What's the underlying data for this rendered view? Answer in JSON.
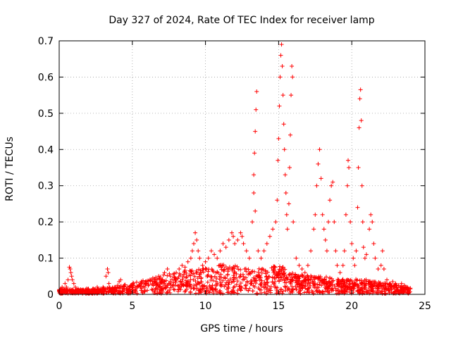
{
  "chart_data": {
    "type": "scatter",
    "title": "Day 327 of 2024, Rate Of TEC Index for receiver lamp",
    "xlabel": "GPS time / hours",
    "ylabel": "ROTI / TECUs",
    "xlim": [
      0,
      25
    ],
    "ylim": [
      0,
      0.7
    ],
    "xticks": [
      0,
      5,
      10,
      15,
      20,
      25
    ],
    "yticks": [
      0,
      0.1,
      0.2,
      0.3,
      0.4,
      0.5,
      0.6,
      0.7
    ],
    "xtick_labels": [
      "0",
      "5",
      "10",
      "15",
      "20",
      "25"
    ],
    "ytick_labels": [
      "0",
      "0.1",
      "0.2",
      "0.3",
      "0.4",
      "0.5",
      "0.6",
      "0.7"
    ],
    "grid": true,
    "marker": "+",
    "color": "#ff0000",
    "series": [
      {
        "name": "ROTI",
        "points": [
          [
            0.0,
            0.01
          ],
          [
            0.1,
            0.012
          ],
          [
            0.2,
            0.02
          ],
          [
            0.3,
            0.015
          ],
          [
            0.4,
            0.03
          ],
          [
            0.5,
            0.02
          ],
          [
            0.6,
            0.04
          ],
          [
            0.7,
            0.075
          ],
          [
            0.75,
            0.07
          ],
          [
            0.8,
            0.06
          ],
          [
            0.85,
            0.05
          ],
          [
            0.9,
            0.04
          ],
          [
            1.0,
            0.03
          ],
          [
            1.1,
            0.02
          ],
          [
            1.3,
            0.015
          ],
          [
            1.5,
            0.012
          ],
          [
            1.8,
            0.01
          ],
          [
            2.0,
            0.015
          ],
          [
            2.3,
            0.01
          ],
          [
            2.6,
            0.02
          ],
          [
            2.8,
            0.015
          ],
          [
            3.0,
            0.02
          ],
          [
            3.2,
            0.05
          ],
          [
            3.3,
            0.07
          ],
          [
            3.35,
            0.06
          ],
          [
            3.4,
            0.03
          ],
          [
            3.6,
            0.015
          ],
          [
            3.8,
            0.02
          ],
          [
            4.0,
            0.025
          ],
          [
            4.1,
            0.035
          ],
          [
            4.2,
            0.04
          ],
          [
            4.4,
            0.02
          ],
          [
            4.6,
            0.015
          ],
          [
            4.8,
            0.02
          ],
          [
            5.0,
            0.025
          ],
          [
            5.3,
            0.02
          ],
          [
            5.6,
            0.03
          ],
          [
            5.9,
            0.035
          ],
          [
            6.2,
            0.04
          ],
          [
            6.5,
            0.035
          ],
          [
            6.8,
            0.05
          ],
          [
            7.0,
            0.04
          ],
          [
            7.2,
            0.06
          ],
          [
            7.4,
            0.07
          ],
          [
            7.6,
            0.05
          ],
          [
            7.8,
            0.055
          ],
          [
            8.0,
            0.06
          ],
          [
            8.2,
            0.07
          ],
          [
            8.4,
            0.08
          ],
          [
            8.6,
            0.075
          ],
          [
            8.8,
            0.09
          ],
          [
            9.0,
            0.1
          ],
          [
            9.1,
            0.12
          ],
          [
            9.2,
            0.14
          ],
          [
            9.3,
            0.17
          ],
          [
            9.4,
            0.15
          ],
          [
            9.5,
            0.12
          ],
          [
            9.6,
            0.1
          ],
          [
            9.8,
            0.08
          ],
          [
            10.0,
            0.09
          ],
          [
            10.2,
            0.1
          ],
          [
            10.4,
            0.12
          ],
          [
            10.6,
            0.11
          ],
          [
            10.8,
            0.1
          ],
          [
            11.0,
            0.12
          ],
          [
            11.2,
            0.14
          ],
          [
            11.4,
            0.13
          ],
          [
            11.6,
            0.15
          ],
          [
            11.8,
            0.17
          ],
          [
            11.9,
            0.16
          ],
          [
            12.0,
            0.14
          ],
          [
            12.2,
            0.15
          ],
          [
            12.4,
            0.17
          ],
          [
            12.5,
            0.16
          ],
          [
            12.6,
            0.14
          ],
          [
            12.8,
            0.12
          ],
          [
            13.0,
            0.1
          ],
          [
            13.2,
            0.2
          ],
          [
            13.3,
            0.33
          ],
          [
            13.35,
            0.39
          ],
          [
            13.4,
            0.45
          ],
          [
            13.45,
            0.51
          ],
          [
            13.5,
            0.56
          ],
          [
            13.3,
            0.28
          ],
          [
            13.4,
            0.23
          ],
          [
            13.6,
            0.12
          ],
          [
            13.8,
            0.1
          ],
          [
            14.0,
            0.12
          ],
          [
            14.2,
            0.14
          ],
          [
            14.4,
            0.16
          ],
          [
            14.6,
            0.18
          ],
          [
            14.8,
            0.2
          ],
          [
            14.9,
            0.26
          ],
          [
            14.95,
            0.37
          ],
          [
            15.0,
            0.43
          ],
          [
            15.05,
            0.52
          ],
          [
            15.1,
            0.6
          ],
          [
            15.15,
            0.66
          ],
          [
            15.2,
            0.69
          ],
          [
            15.25,
            0.63
          ],
          [
            15.3,
            0.55
          ],
          [
            15.35,
            0.47
          ],
          [
            15.4,
            0.4
          ],
          [
            15.45,
            0.33
          ],
          [
            15.5,
            0.28
          ],
          [
            15.55,
            0.22
          ],
          [
            15.6,
            0.18
          ],
          [
            15.7,
            0.25
          ],
          [
            15.75,
            0.35
          ],
          [
            15.8,
            0.44
          ],
          [
            15.85,
            0.55
          ],
          [
            15.9,
            0.63
          ],
          [
            15.95,
            0.6
          ],
          [
            16.0,
            0.2
          ],
          [
            16.2,
            0.1
          ],
          [
            16.4,
            0.08
          ],
          [
            16.6,
            0.07
          ],
          [
            16.8,
            0.06
          ],
          [
            17.0,
            0.08
          ],
          [
            17.2,
            0.12
          ],
          [
            17.4,
            0.18
          ],
          [
            17.5,
            0.22
          ],
          [
            17.6,
            0.3
          ],
          [
            17.7,
            0.36
          ],
          [
            17.8,
            0.4
          ],
          [
            17.9,
            0.32
          ],
          [
            18.0,
            0.22
          ],
          [
            18.1,
            0.18
          ],
          [
            18.2,
            0.15
          ],
          [
            18.3,
            0.12
          ],
          [
            18.4,
            0.2
          ],
          [
            18.5,
            0.26
          ],
          [
            18.6,
            0.3
          ],
          [
            18.7,
            0.31
          ],
          [
            18.8,
            0.2
          ],
          [
            18.9,
            0.12
          ],
          [
            19.0,
            0.08
          ],
          [
            19.2,
            0.06
          ],
          [
            19.4,
            0.08
          ],
          [
            19.5,
            0.12
          ],
          [
            19.6,
            0.22
          ],
          [
            19.7,
            0.3
          ],
          [
            19.75,
            0.37
          ],
          [
            19.8,
            0.35
          ],
          [
            19.9,
            0.2
          ],
          [
            20.0,
            0.14
          ],
          [
            20.1,
            0.1
          ],
          [
            20.2,
            0.08
          ],
          [
            20.3,
            0.12
          ],
          [
            20.4,
            0.24
          ],
          [
            20.45,
            0.35
          ],
          [
            20.5,
            0.46
          ],
          [
            20.55,
            0.54
          ],
          [
            20.6,
            0.565
          ],
          [
            20.65,
            0.48
          ],
          [
            20.7,
            0.3
          ],
          [
            20.75,
            0.2
          ],
          [
            20.8,
            0.13
          ],
          [
            20.9,
            0.1
          ],
          [
            21.0,
            0.11
          ],
          [
            21.2,
            0.18
          ],
          [
            21.3,
            0.22
          ],
          [
            21.4,
            0.2
          ],
          [
            21.5,
            0.14
          ],
          [
            21.6,
            0.1
          ],
          [
            21.8,
            0.07
          ],
          [
            22.0,
            0.08
          ],
          [
            22.1,
            0.12
          ],
          [
            22.2,
            0.07
          ],
          [
            22.4,
            0.04
          ],
          [
            22.6,
            0.03
          ],
          [
            22.8,
            0.035
          ],
          [
            23.0,
            0.03
          ],
          [
            23.2,
            0.025
          ],
          [
            23.4,
            0.03
          ],
          [
            23.6,
            0.025
          ],
          [
            23.8,
            0.02
          ],
          [
            24.0,
            0.015
          ]
        ]
      }
    ]
  }
}
